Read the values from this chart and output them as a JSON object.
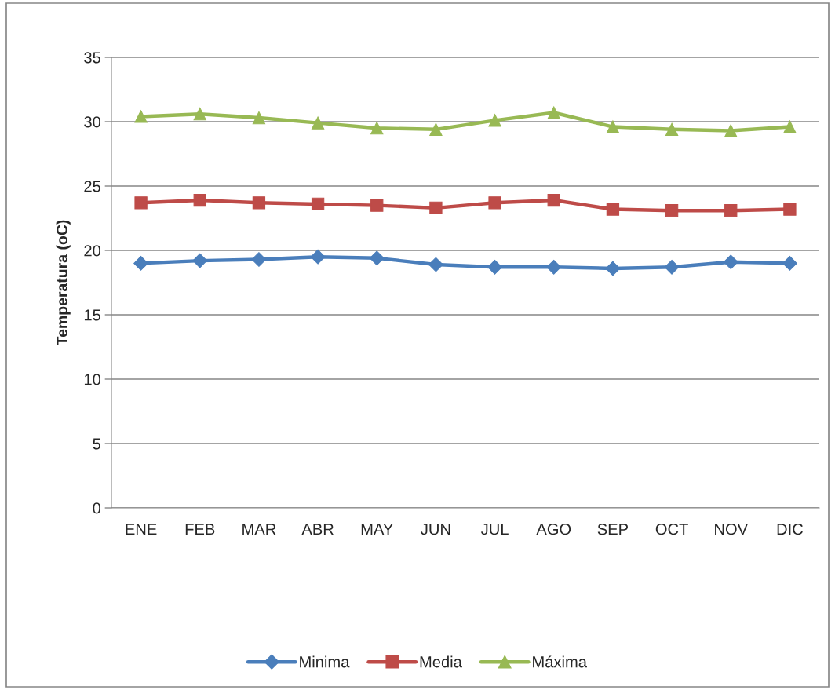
{
  "chart_data": {
    "type": "line",
    "ylabel": "Temperatura (oC)",
    "categories": [
      "ENE",
      "FEB",
      "MAR",
      "ABR",
      "MAY",
      "JUN",
      "JUL",
      "AGO",
      "SEP",
      "OCT",
      "NOV",
      "DIC"
    ],
    "series": [
      {
        "name": "Minima",
        "color": "#4a7ebb",
        "marker": "diamond",
        "values": [
          19.0,
          19.2,
          19.3,
          19.5,
          19.4,
          18.9,
          18.7,
          18.7,
          18.6,
          18.7,
          19.1,
          19.0
        ]
      },
      {
        "name": "Media",
        "color": "#be4b48",
        "marker": "square",
        "values": [
          23.7,
          23.9,
          23.7,
          23.6,
          23.5,
          23.3,
          23.7,
          23.9,
          23.2,
          23.1,
          23.1,
          23.2
        ]
      },
      {
        "name": "Máxima",
        "color": "#98b954",
        "marker": "triangle",
        "values": [
          30.4,
          30.6,
          30.3,
          29.9,
          29.5,
          29.4,
          30.1,
          30.7,
          29.6,
          29.4,
          29.3,
          29.6
        ]
      }
    ],
    "ylim": [
      0,
      35
    ],
    "yticks": [
      0,
      5,
      10,
      15,
      20,
      25,
      30,
      35
    ],
    "grid": "y",
    "legend": "bottom",
    "line_style": "solid"
  }
}
